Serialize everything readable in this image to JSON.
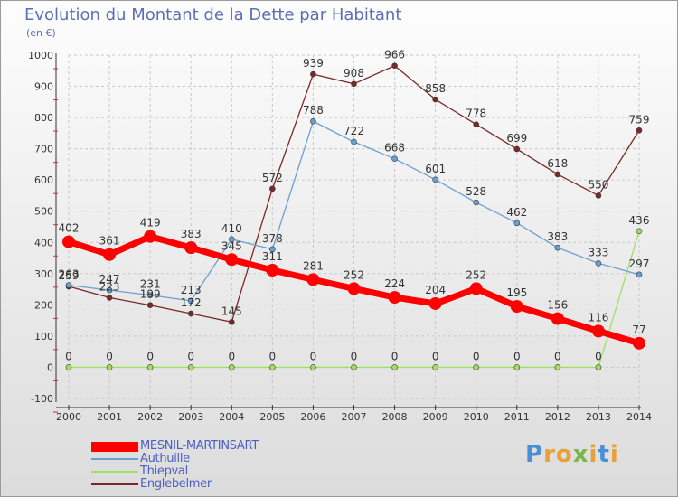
{
  "header": {
    "title": "Evolution du Montant de la Dette par Habitant",
    "subtitle": "(en €)"
  },
  "brand": {
    "text": "Proxiti",
    "letters": [
      "P",
      "r",
      "o",
      "x",
      "i",
      "t",
      "i"
    ],
    "colors": [
      "#4a90d9",
      "#e8a13a",
      "#e8a13a",
      "#7ab648",
      "#e8a13a",
      "#4a90d9",
      "#e8a13a"
    ]
  },
  "colors": {
    "title": "#5b6fb5",
    "grid": "#c8c8c8",
    "axis": "#333333",
    "tick_marks": "#cc3333"
  },
  "chart_data": {
    "type": "line",
    "title": "Evolution du Montant de la Dette par Habitant",
    "subtitle": "(en €)",
    "x": [
      2000,
      2001,
      2002,
      2003,
      2004,
      2005,
      2006,
      2007,
      2008,
      2009,
      2010,
      2011,
      2012,
      2013,
      2014
    ],
    "ylim": [
      -100,
      1000
    ],
    "yticks": [
      -100,
      0,
      100,
      200,
      300,
      400,
      500,
      600,
      700,
      800,
      900,
      1000
    ],
    "grid": true,
    "legend_position": "bottom-left",
    "series": [
      {
        "name": "MESNIL-MARTINSART",
        "color": "#ff0000",
        "width": 7,
        "marker": 7,
        "values": [
          402,
          361,
          419,
          383,
          345,
          311,
          281,
          252,
          224,
          204,
          252,
          195,
          156,
          116,
          77
        ]
      },
      {
        "name": "Authuille",
        "color": "#6aa0d0",
        "width": 1.3,
        "marker": 3,
        "values": [
          263,
          247,
          231,
          213,
          410,
          378,
          788,
          722,
          668,
          601,
          528,
          462,
          383,
          333,
          297
        ]
      },
      {
        "name": "Thiepval",
        "color": "#a0e060",
        "width": 1.3,
        "marker": 3,
        "values": [
          0,
          0,
          0,
          0,
          0,
          0,
          0,
          0,
          0,
          0,
          0,
          0,
          0,
          0,
          436
        ]
      },
      {
        "name": "Englebelmer",
        "color": "#7a2828",
        "width": 1.3,
        "marker": 3,
        "values": [
          259,
          223,
          199,
          172,
          145,
          572,
          939,
          908,
          966,
          858,
          778,
          699,
          618,
          550,
          759
        ]
      }
    ]
  }
}
